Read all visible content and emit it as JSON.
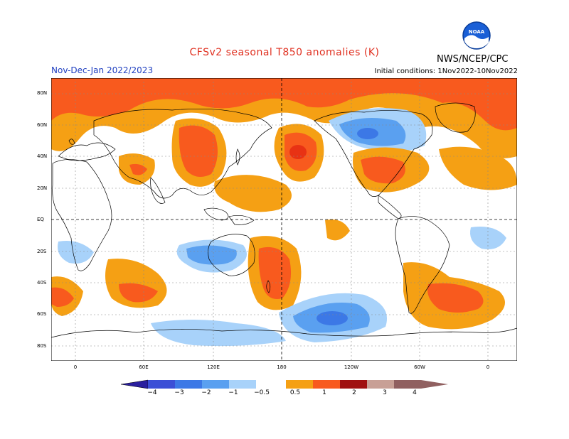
{
  "header": {
    "title": "CFSv2 seasonal T850 anomalies (K)",
    "period": "Nov-Dec-Jan 2022/2023",
    "initial_conditions": "Initial conditions: 1Nov2022-10Nov2022",
    "agency": "NWS/NCEP/CPC",
    "logo_text": "NOAA"
  },
  "axes": {
    "lat_labels": [
      "80N",
      "60N",
      "40N",
      "20N",
      "EQ",
      "20S",
      "40S",
      "60S",
      "80S"
    ],
    "lon_labels": [
      "0",
      "60E",
      "120E",
      "180",
      "120W",
      "60W",
      "0"
    ]
  },
  "colorbar": {
    "labels": [
      "−4",
      "−3",
      "−2",
      "−1",
      "−0.5",
      "0.5",
      "1",
      "2",
      "3",
      "4"
    ],
    "colors": [
      "#2a1f9e",
      "#3b4fd6",
      "#3c78e6",
      "#5aa0f0",
      "#a8d2fa",
      "#ffffff",
      "#f5a014",
      "#f85a1e",
      "#e83214",
      "#a01010",
      "#c8a096",
      "#906060"
    ]
  }
}
